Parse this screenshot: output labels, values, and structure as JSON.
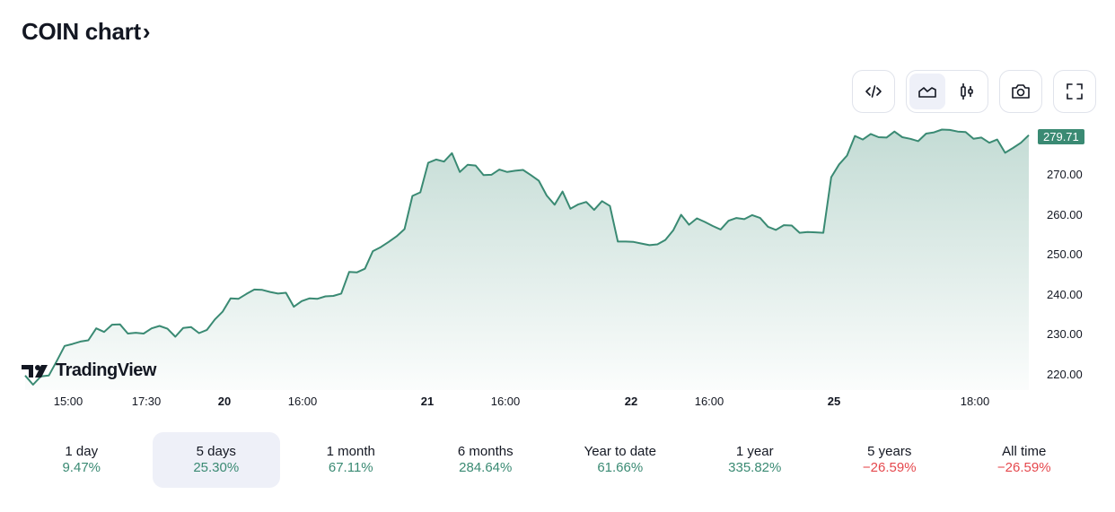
{
  "header": {
    "title": "COIN chart",
    "chevron": "›"
  },
  "toolbar": {
    "buttons": [
      {
        "name": "embed",
        "icon": "code-icon"
      },
      {
        "name": "area-chart",
        "icon": "area-chart-icon",
        "active": true
      },
      {
        "name": "candlestick-chart",
        "icon": "candlestick-icon",
        "active": false
      },
      {
        "name": "snapshot",
        "icon": "camera-icon"
      },
      {
        "name": "fullscreen",
        "icon": "fullscreen-icon"
      }
    ]
  },
  "branding": {
    "logo_text": "TradingView"
  },
  "colors": {
    "line": "#3a8a73",
    "up": "#3a8a73",
    "down": "#e5484d",
    "active_bg": "#eef0f8"
  },
  "chart_data": {
    "type": "area",
    "title": "COIN chart",
    "symbol": "COIN",
    "period": "5 days",
    "last_price": "279.71",
    "xlabel": "",
    "ylabel": "",
    "ylim": [
      216.5,
      282
    ],
    "y_ticks": [
      "270.00",
      "260.00",
      "250.00",
      "240.00",
      "230.00",
      "220.00"
    ],
    "x_ticks": [
      {
        "label": "15:00",
        "bold": false
      },
      {
        "label": "17:30",
        "bold": false
      },
      {
        "label": "20",
        "bold": true
      },
      {
        "label": "16:00",
        "bold": false
      },
      {
        "label": "21",
        "bold": true
      },
      {
        "label": "16:00",
        "bold": false
      },
      {
        "label": "22",
        "bold": true
      },
      {
        "label": "16:00",
        "bold": false
      },
      {
        "label": "25",
        "bold": true
      },
      {
        "label": "18:00",
        "bold": false
      }
    ],
    "grid": false,
    "legend": "none",
    "values": [
      219.6,
      217.3,
      219.4,
      219.6,
      223.2,
      227.0,
      227.5,
      228.1,
      228.4,
      231.4,
      230.5,
      232.3,
      232.4,
      230.1,
      230.3,
      230.1,
      231.4,
      232.0,
      231.3,
      229.3,
      231.5,
      231.7,
      230.2,
      231.0,
      233.6,
      235.6,
      238.9,
      238.8,
      240.0,
      241.1,
      241.0,
      240.5,
      240.1,
      240.3,
      236.8,
      238.2,
      238.9,
      238.8,
      239.4,
      239.5,
      240.1,
      245.5,
      245.4,
      246.3,
      250.7,
      251.7,
      253.0,
      254.4,
      256.2,
      264.5,
      265.4,
      272.8,
      273.6,
      273.1,
      275.2,
      270.5,
      272.3,
      272.1,
      269.7,
      269.8,
      271.1,
      270.5,
      270.8,
      271.0,
      269.7,
      268.3,
      264.6,
      262.3,
      265.6,
      261.3,
      262.4,
      263.0,
      261.0,
      263.2,
      262.0,
      253.1,
      253.1,
      253.0,
      252.6,
      252.2,
      252.4,
      253.5,
      255.9,
      259.8,
      257.3,
      258.9,
      258.0,
      257.0,
      256.1,
      258.3,
      259.0,
      258.7,
      259.7,
      259.0,
      256.8,
      256.0,
      257.2,
      257.1,
      255.3,
      255.5,
      255.4,
      255.3,
      269.2,
      272.4,
      274.6,
      279.5,
      278.6,
      280.0,
      279.2,
      279.1,
      280.6,
      279.2,
      278.8,
      278.2,
      280.1,
      280.4,
      281.1,
      281.0,
      280.6,
      280.5,
      278.8,
      279.1,
      277.8,
      278.6,
      275.3,
      276.5,
      277.8,
      279.71
    ]
  },
  "ranges": [
    {
      "label": "1 day",
      "value": "9.47%",
      "direction": "up",
      "active": false
    },
    {
      "label": "5 days",
      "value": "25.30%",
      "direction": "up",
      "active": true
    },
    {
      "label": "1 month",
      "value": "67.11%",
      "direction": "up",
      "active": false
    },
    {
      "label": "6 months",
      "value": "284.64%",
      "direction": "up",
      "active": false
    },
    {
      "label": "Year to date",
      "value": "61.66%",
      "direction": "up",
      "active": false
    },
    {
      "label": "1 year",
      "value": "335.82%",
      "direction": "up",
      "active": false
    },
    {
      "label": "5 years",
      "value": "−26.59%",
      "direction": "down",
      "active": false
    },
    {
      "label": "All time",
      "value": "−26.59%",
      "direction": "down",
      "active": false
    }
  ]
}
